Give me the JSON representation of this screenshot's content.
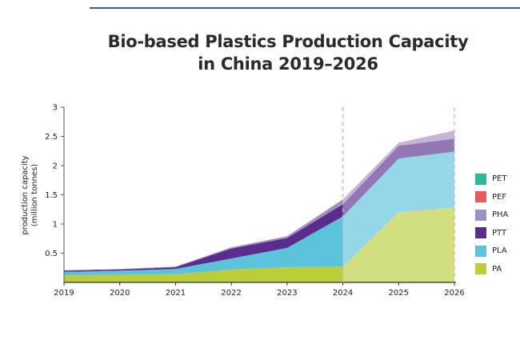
{
  "chart_data": {
    "type": "area",
    "title_line1": "Bio-based Plastics Production Capacity",
    "title_line2": "in China 2019–2026",
    "ylabel_line1": "production capacity",
    "ylabel_line2": "(million tonnes)",
    "xlabel": "",
    "x": [
      "2019",
      "2020",
      "2021",
      "2022",
      "2023",
      "2024",
      "2025",
      "2026"
    ],
    "ylim": [
      0,
      3
    ],
    "yticks": [
      0.5,
      1,
      1.5,
      2,
      2.5,
      3
    ],
    "ytick_labels": [
      "0.5",
      "1",
      "1.5",
      "2",
      "2.5",
      "3"
    ],
    "forecast_from": "2024",
    "stacked": true,
    "series": [
      {
        "name": "PA",
        "color": "#bccd3a",
        "values": [
          0.12,
          0.13,
          0.14,
          0.22,
          0.26,
          0.27,
          1.2,
          1.28
        ]
      },
      {
        "name": "PLA",
        "color": "#5bc3dc",
        "values": [
          0.06,
          0.07,
          0.09,
          0.19,
          0.33,
          0.86,
          0.92,
          0.96
        ]
      },
      {
        "name": "PTT",
        "color": "#5a2d8c",
        "values": [
          0.02,
          0.02,
          0.03,
          0.17,
          0.17,
          0.21,
          0.22,
          0.22
        ]
      },
      {
        "name": "PHA",
        "color": "#a18ec4",
        "values": [
          0.01,
          0.01,
          0.01,
          0.02,
          0.03,
          0.08,
          0.04,
          0.13
        ]
      },
      {
        "name": "PEF",
        "color": "#e85a5a",
        "values": [
          0,
          0,
          0,
          0,
          0,
          0,
          0.01,
          0.01
        ]
      },
      {
        "name": "PET",
        "color": "#2eb89a",
        "values": [
          0,
          0,
          0,
          0,
          0,
          0,
          0,
          0
        ]
      }
    ],
    "legend_order": [
      "PET",
      "PEF",
      "PHA",
      "PTT",
      "PLA",
      "PA"
    ]
  }
}
